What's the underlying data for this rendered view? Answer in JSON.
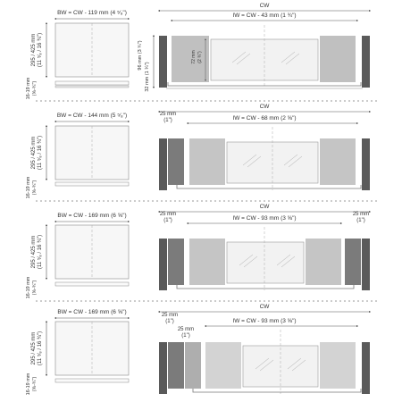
{
  "rows": [
    {
      "bw_label": "BW = CW - 119 mm (4 ⁵⁄₈\")",
      "height_label_a": "295 / 425 mm",
      "height_label_b": "(11 ⁵⁄₈ / 16 ¾\")",
      "side_label_a": "16-19 mm",
      "side_label_b": "(⅝-¾\")",
      "cw_label": "CW",
      "iw_label": "IW = CW - 43 mm (1 ¾\")",
      "vert_a": "96 mm (3 ¾\")",
      "vert_b": "32 mm (1 ¼\")",
      "vert_c": "72 mm",
      "vert_d": "(2 ¾\")"
    },
    {
      "bw_label": "BW = CW - 144 mm (5 ⁵⁄₈\")",
      "height_label_a": "295 / 425 mm",
      "height_label_b": "(11 ⁵⁄₈ / 16 ¾\")",
      "side_label_a": "16-19 mm",
      "side_label_b": "(⅝-¾\")",
      "cw_label": "CW",
      "iw_label": "IW = CW - 68 mm (2 ⅝\")",
      "left_gap_a": "25 mm",
      "left_gap_b": "(1\")"
    },
    {
      "bw_label": "BW = CW - 169 mm (6 ⅝\")",
      "height_label_a": "295 / 425 mm",
      "height_label_b": "(11 ⁵⁄₈ / 16 ¾\")",
      "side_label_a": "16-19 mm",
      "side_label_b": "(⅝-¾\")",
      "cw_label": "CW",
      "iw_label": "IW = CW - 93 mm (3 ⅝\")",
      "left_gap_a": "25 mm",
      "left_gap_b": "(1\")",
      "right_gap_a": "25 mm",
      "right_gap_b": "(1\")"
    },
    {
      "bw_label": "BW = CW - 169 mm (6 ⅝\")",
      "height_label_a": "295 / 425 mm",
      "height_label_b": "(11 ⁵⁄₈ / 16 ¾\")",
      "side_label_a": "16-19 mm",
      "side_label_b": "(⅝-¾\")",
      "cw_label": "CW",
      "iw_label": "IW = CW - 93 mm (3 ⅝\")",
      "left_gap_a": "25 mm",
      "left_gap_b": "(1\")",
      "left_gap2_a": "25 mm",
      "left_gap2_b": "(1\")"
    }
  ],
  "colors": {
    "line": "#555555",
    "panel_dark": "#5a5a5a",
    "panel_mid": "#8c8c8c",
    "panel_light": "#c8c8c8",
    "panel_lighter": "#dcdcdc",
    "glass": "#f2f2f2",
    "sheet_fill": "#f7f7f7"
  }
}
